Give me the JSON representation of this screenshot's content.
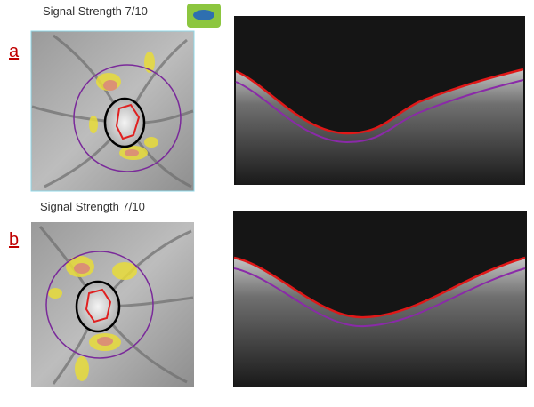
{
  "panels": [
    {
      "label": "a",
      "signal_strength": "Signal Strength  7/10"
    },
    {
      "label": "b",
      "signal_strength": "Signal Strength  7/10"
    }
  ]
}
